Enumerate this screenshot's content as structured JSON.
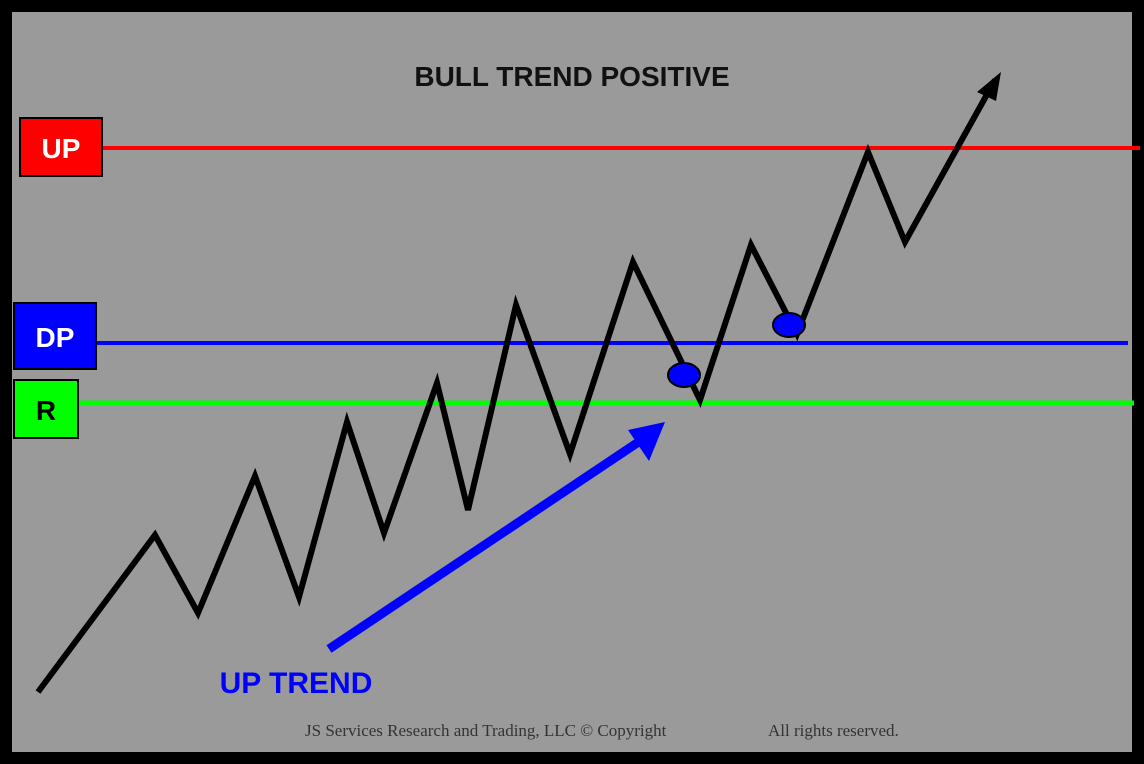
{
  "title": "BULL TREND POSITIVE",
  "levels": [
    {
      "label": "UP",
      "color": "#ff0000",
      "text_color": "#ffffff"
    },
    {
      "label": "DP",
      "color": "#0000ff",
      "text_color": "#ffffff"
    },
    {
      "label": "R",
      "color": "#00ff00",
      "text_color": "#000000"
    }
  ],
  "trend_label": "UP TREND",
  "trend_color": "#0000ff",
  "price_line_color": "#000000",
  "marker_color": "#0000ff",
  "copyright_left": "JS Services Research  and Trading, LLC © Copyright",
  "copyright_right": "All rights reserved.",
  "background_color": "#9a9a9a"
}
